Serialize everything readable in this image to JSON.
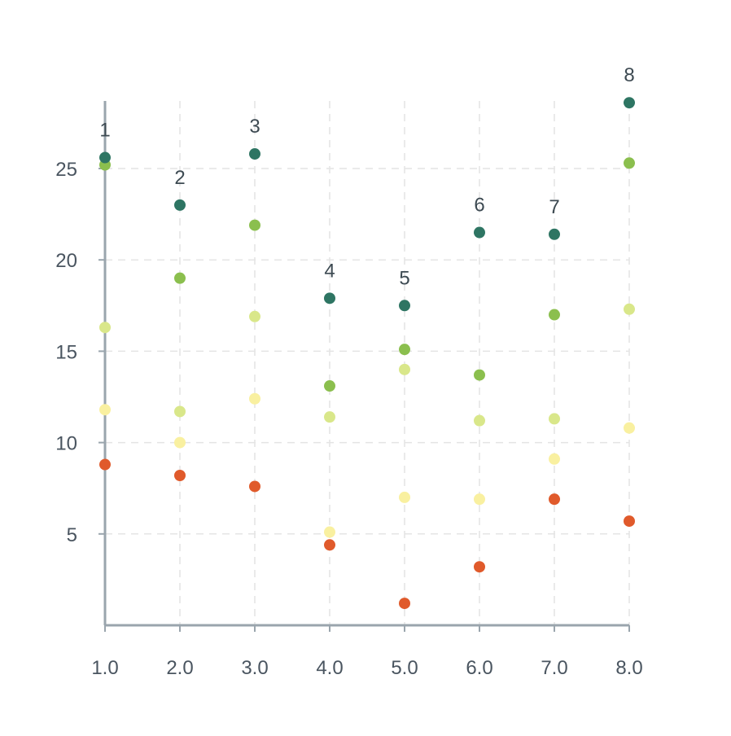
{
  "chart_data": {
    "type": "scatter",
    "title": "",
    "xlabel": "",
    "ylabel": "",
    "xlim": [
      1.0,
      8.0
    ],
    "ylim": [
      0,
      28.5
    ],
    "grid": true,
    "x_ticks": [
      "1.0",
      "2.0",
      "3.0",
      "4.0",
      "5.0",
      "6.0",
      "7.0",
      "8.0"
    ],
    "y_ticks": [
      "5",
      "10",
      "15",
      "20",
      "25"
    ],
    "x": [
      1,
      2,
      3,
      4,
      5,
      6,
      7,
      8
    ],
    "series": [
      {
        "color": "#2e7563",
        "values": [
          25.6,
          23.0,
          25.8,
          17.9,
          17.5,
          21.5,
          21.4,
          28.6
        ],
        "labels": [
          "1",
          "2",
          "3",
          "4",
          "5",
          "6",
          "7",
          "8"
        ]
      },
      {
        "color": "#8bbf4e",
        "values": [
          25.2,
          19.0,
          21.9,
          13.1,
          15.1,
          13.7,
          17.0,
          25.3
        ]
      },
      {
        "color": "#d9e78a",
        "values": [
          16.3,
          11.7,
          16.9,
          11.4,
          14.0,
          11.2,
          11.3,
          17.3
        ]
      },
      {
        "color": "#f9f0a0",
        "values": [
          11.8,
          10.0,
          12.4,
          5.1,
          7.0,
          6.9,
          9.1,
          10.8
        ]
      },
      {
        "color": "#e05a2b",
        "values": [
          8.8,
          8.2,
          7.6,
          4.4,
          1.2,
          3.2,
          6.9,
          5.7
        ]
      }
    ],
    "colors": {
      "axis": "#9aa5ad",
      "grid": "#e4e4e4",
      "label": "#4a5560"
    }
  }
}
